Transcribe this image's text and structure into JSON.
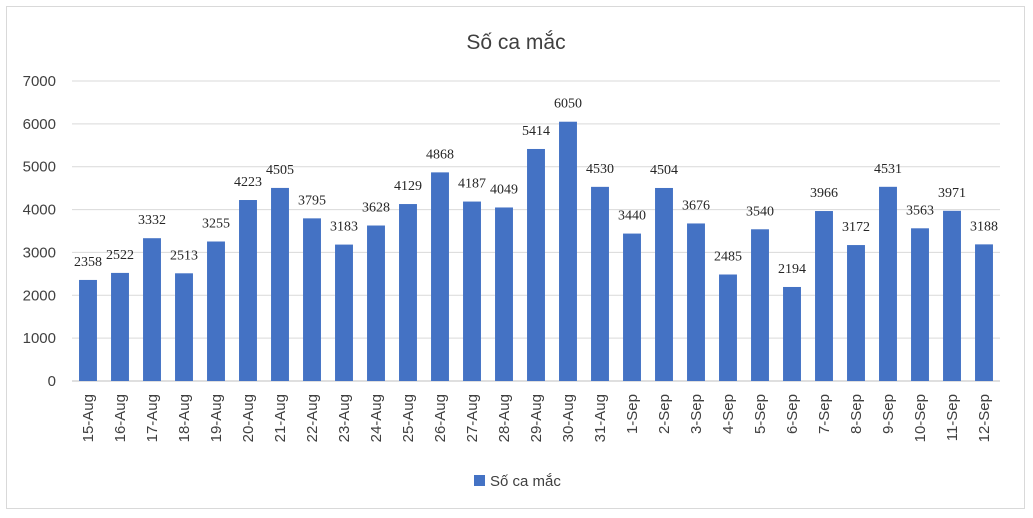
{
  "chart_data": {
    "type": "bar",
    "title": "Số ca mắc",
    "xlabel": "",
    "ylabel": "",
    "ylim": [
      0,
      7000
    ],
    "yticks": [
      "0",
      "1000",
      "2000",
      "3000",
      "4000",
      "5000",
      "6000",
      "7000"
    ],
    "grid": true,
    "legend_position": "bottom",
    "color": "#4472c4",
    "categories": [
      "15-Aug",
      "16-Aug",
      "17-Aug",
      "18-Aug",
      "19-Aug",
      "20-Aug",
      "21-Aug",
      "22-Aug",
      "23-Aug",
      "24-Aug",
      "25-Aug",
      "26-Aug",
      "27-Aug",
      "28-Aug",
      "29-Aug",
      "30-Aug",
      "31-Aug",
      "1-Sep",
      "2-Sep",
      "3-Sep",
      "4-Sep",
      "5-Sep",
      "6-Sep",
      "7-Sep",
      "8-Sep",
      "9-Sep",
      "10-Sep",
      "11-Sep",
      "12-Sep"
    ],
    "series": [
      {
        "name": "Số ca mắc",
        "values": [
          2358,
          2522,
          3332,
          2513,
          3255,
          4223,
          4505,
          3795,
          3183,
          3628,
          4129,
          4868,
          4187,
          4049,
          5414,
          6050,
          4530,
          3440,
          4504,
          3676,
          2485,
          3540,
          2194,
          3966,
          3172,
          4531,
          3563,
          3971,
          3188
        ]
      }
    ]
  }
}
